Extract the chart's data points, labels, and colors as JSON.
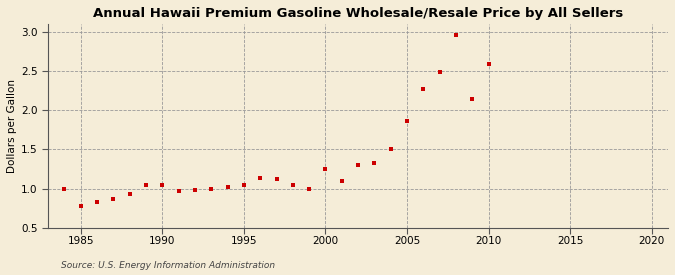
{
  "title": "Annual Hawaii Premium Gasoline Wholesale/Resale Price by All Sellers",
  "ylabel": "Dollars per Gallon",
  "source": "Source: U.S. Energy Information Administration",
  "background_color": "#f5edd8",
  "marker_color": "#cc0000",
  "xlim": [
    1983,
    2021
  ],
  "ylim": [
    0.5,
    3.1
  ],
  "xticks": [
    1985,
    1990,
    1995,
    2000,
    2005,
    2010,
    2015,
    2020
  ],
  "yticks": [
    0.5,
    1.0,
    1.5,
    2.0,
    2.5,
    3.0
  ],
  "years": [
    1984,
    1985,
    1986,
    1987,
    1988,
    1989,
    1990,
    1991,
    1992,
    1993,
    1994,
    1995,
    1996,
    1997,
    1998,
    1999,
    2000,
    2001,
    2002,
    2003,
    2004,
    2005,
    2006,
    2007,
    2008,
    2009,
    2010
  ],
  "values": [
    0.99,
    0.78,
    0.83,
    0.87,
    0.93,
    1.04,
    1.05,
    0.97,
    0.98,
    1.0,
    1.02,
    1.05,
    1.14,
    1.12,
    1.05,
    0.99,
    1.25,
    1.09,
    1.3,
    1.32,
    1.5,
    1.86,
    2.27,
    2.49,
    2.96,
    2.14,
    2.59
  ]
}
